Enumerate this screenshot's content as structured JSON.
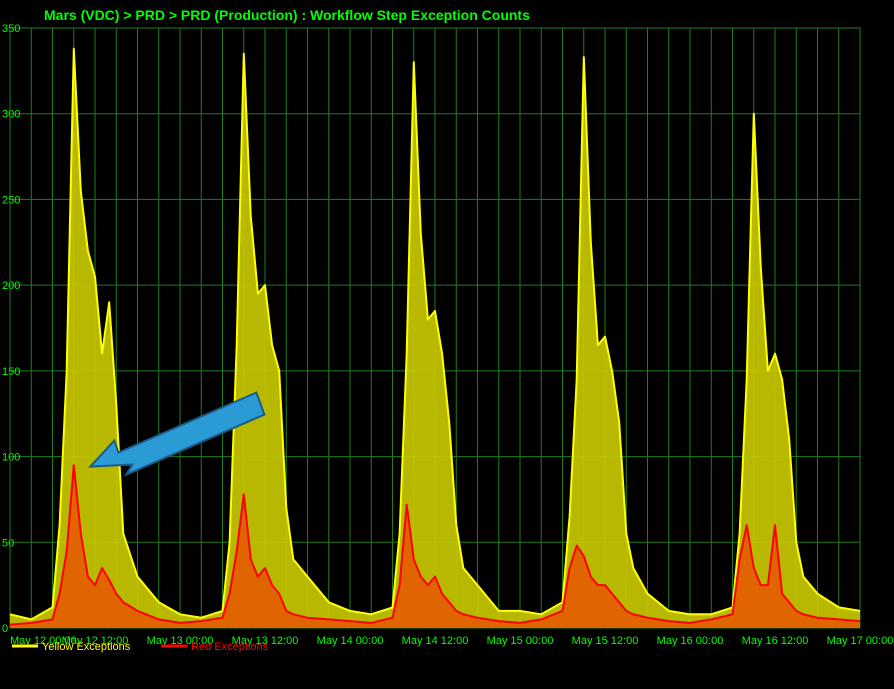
{
  "chart_data": {
    "type": "area",
    "title": "Mars (VDC) > PRD > PRD (Production) : Workflow Step Exception Counts",
    "xlabel": "",
    "ylabel": "",
    "ylim": [
      0,
      350
    ],
    "xlim": [
      "May 12 00:00",
      "May 17 00:00"
    ],
    "grid": true,
    "legend_position": "bottom-left",
    "y_ticks": [
      0,
      50,
      100,
      150,
      200,
      250,
      300,
      350
    ],
    "x_ticks": [
      "May 12 00:00",
      "May 12 12:00",
      "May 13 00:00",
      "May 13 12:00",
      "May 14 00:00",
      "May 14 12:00",
      "May 15 00:00",
      "May 15 12:00",
      "May 16 00:00",
      "May 16 12:00",
      "May 17 00:00"
    ],
    "x_hours": [
      0,
      3,
      6,
      7,
      8,
      9,
      10,
      11,
      12,
      13,
      14,
      15,
      16,
      18,
      21,
      24,
      27,
      30,
      31,
      32,
      33,
      34,
      35,
      36,
      37,
      38,
      39,
      40,
      42,
      45,
      48,
      51,
      54,
      55,
      56,
      57,
      58,
      59,
      60,
      61,
      62,
      63,
      64,
      66,
      69,
      72,
      75,
      78,
      79,
      80,
      81,
      82,
      83,
      84,
      85,
      86,
      87,
      88,
      90,
      93,
      96,
      99,
      102,
      103,
      104,
      105,
      106,
      107,
      108,
      109,
      110,
      111,
      112,
      114,
      117,
      120
    ],
    "series": [
      {
        "name": "Yellow Exceptions",
        "color": "#ffff00",
        "fill": "#c8c800",
        "values": [
          8,
          5,
          12,
          60,
          150,
          338,
          255,
          220,
          205,
          160,
          190,
          130,
          55,
          30,
          15,
          8,
          6,
          10,
          50,
          165,
          335,
          240,
          195,
          200,
          165,
          150,
          70,
          40,
          30,
          15,
          10,
          8,
          12,
          55,
          160,
          330,
          230,
          180,
          185,
          160,
          120,
          60,
          35,
          25,
          10,
          10,
          8,
          15,
          65,
          145,
          333,
          225,
          165,
          170,
          150,
          120,
          55,
          35,
          20,
          10,
          8,
          8,
          12,
          55,
          145,
          300,
          210,
          150,
          160,
          145,
          110,
          50,
          30,
          20,
          12,
          10
        ]
      },
      {
        "name": "Red Exceptions",
        "color": "#ff0000",
        "fill": "#e06400",
        "values": [
          2,
          3,
          5,
          20,
          45,
          95,
          55,
          30,
          25,
          35,
          28,
          20,
          15,
          10,
          5,
          3,
          4,
          6,
          20,
          45,
          78,
          40,
          30,
          35,
          25,
          20,
          10,
          8,
          6,
          5,
          4,
          3,
          6,
          25,
          72,
          40,
          30,
          25,
          30,
          20,
          15,
          10,
          8,
          6,
          4,
          3,
          5,
          10,
          35,
          48,
          42,
          30,
          25,
          25,
          20,
          15,
          10,
          8,
          6,
          4,
          3,
          5,
          8,
          40,
          60,
          35,
          25,
          25,
          60,
          20,
          15,
          10,
          8,
          6,
          5,
          4
        ]
      }
    ]
  },
  "legend": [
    {
      "label": "Yellow Exceptions",
      "color": "#ffff00"
    },
    {
      "label": "Red Exceptions",
      "color": "#ff0000"
    }
  ],
  "annotation": {
    "type": "arrow",
    "color": "#2b9bd6",
    "outline": "#1a5c8a",
    "points_to": {
      "x_hours": 10.5,
      "value": 93
    }
  }
}
